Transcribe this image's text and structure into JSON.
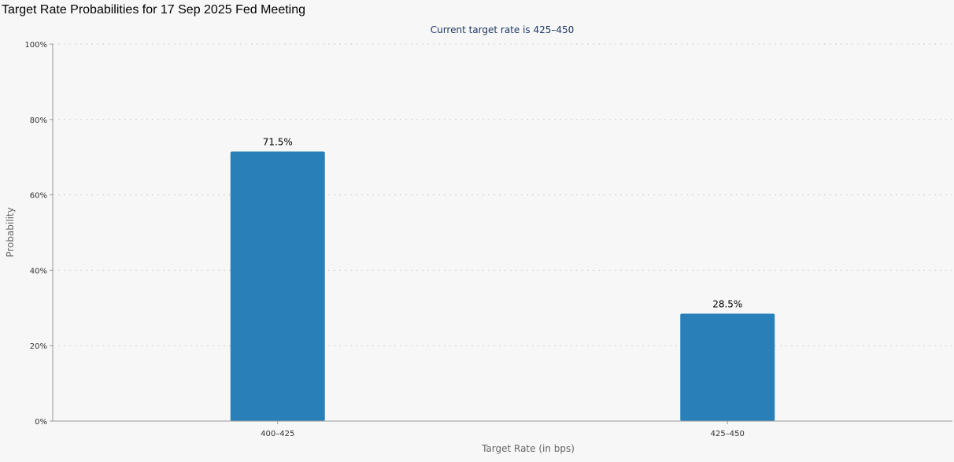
{
  "page": {
    "title": "Target Rate Probabilities for 17 Sep 2025 Fed Meeting"
  },
  "chart_data": {
    "type": "bar",
    "title": "Target Rate Probabilities for 17 Sep 2025 Fed Meeting",
    "subtitle": "Current target rate is 425–450",
    "categories": [
      "400–425",
      "425–450"
    ],
    "values": [
      71.5,
      28.5
    ],
    "data_labels": [
      "71.5%",
      "28.5%"
    ],
    "xlabel": "Target Rate (in bps)",
    "ylabel": "Probability",
    "ylim": [
      0,
      100
    ],
    "yticks": [
      0,
      20,
      40,
      60,
      80,
      100
    ],
    "ytick_labels": [
      "0%",
      "20%",
      "40%",
      "60%",
      "80%",
      "100%"
    ],
    "grid": true,
    "bar_color": "#2980b9"
  }
}
